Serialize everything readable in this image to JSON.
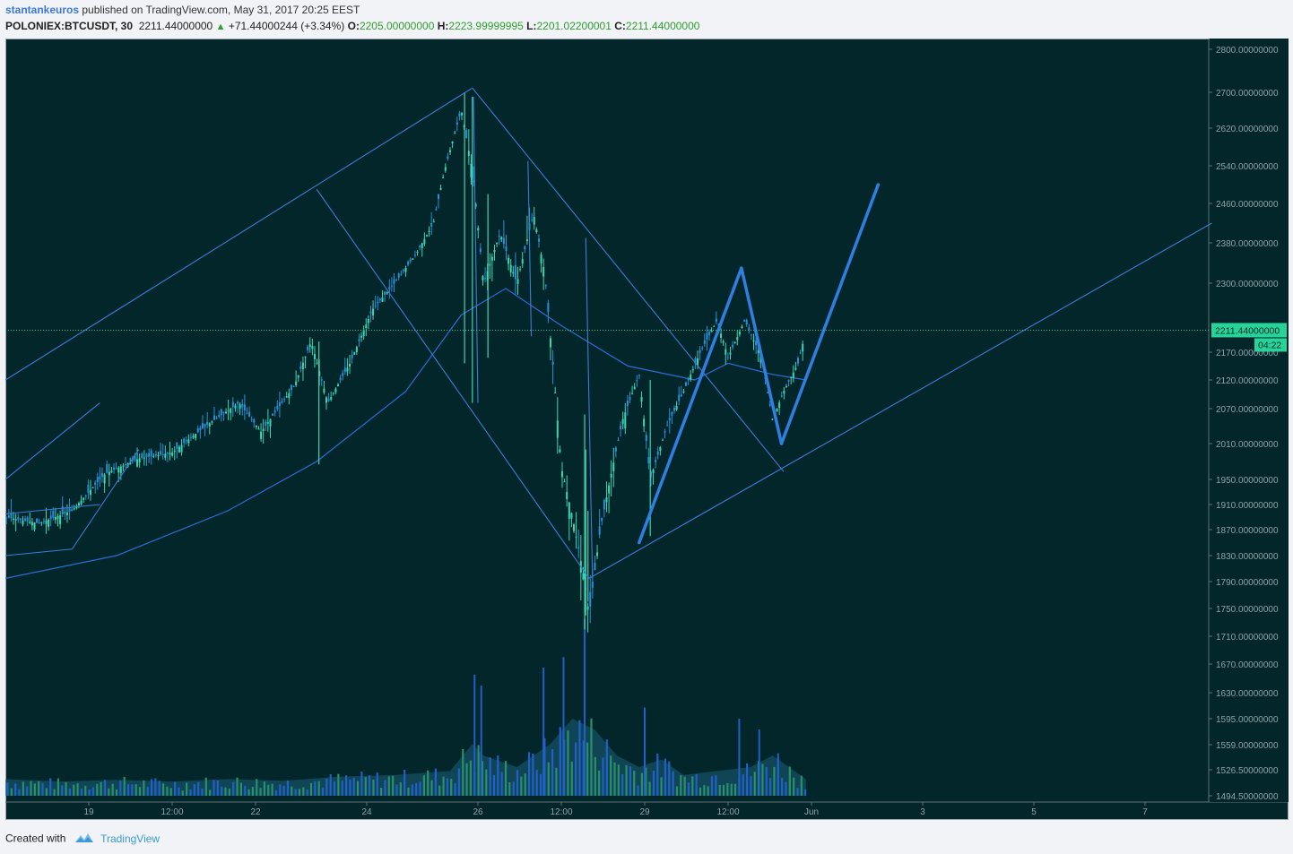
{
  "header": {
    "author": "stantankeuros",
    "published_text": "published on TradingView.com, May 31, 2017 20:25 EEST",
    "symbol": "POLONIEX:BTCUSDT, 30",
    "last": "2211.44000000",
    "change": "+71.44000244 (+3.34%)",
    "o_label": "O:",
    "o_value": "2205.00000000",
    "h_label": "H:",
    "h_value": "2223.99999995",
    "l_label": "L:",
    "l_value": "2201.02200001",
    "c_label": "C:",
    "c_value": "2211.44000000"
  },
  "footer": {
    "created_with": "Created with",
    "brand": "TradingView"
  },
  "chart_data": {
    "type": "candlestick",
    "symbol": "POLONIEX:BTCUSDT",
    "interval": "30",
    "last_price": 2211.44,
    "last_price_label": "2211.44000000",
    "countdown_label": "04:22",
    "price_axis_labels": [
      {
        "label": "2800.00000000",
        "v": 2800
      },
      {
        "label": "2700.00000000",
        "v": 2700
      },
      {
        "label": "2620.00000000",
        "v": 2620
      },
      {
        "label": "2540.00000000",
        "v": 2540
      },
      {
        "label": "2460.00000000",
        "v": 2460
      },
      {
        "label": "2380.00000000",
        "v": 2380
      },
      {
        "label": "2300.00000000",
        "v": 2300
      },
      {
        "label": "2170.00000000",
        "v": 2170
      },
      {
        "label": "2120.00000000",
        "v": 2120
      },
      {
        "label": "2070.00000000",
        "v": 2070
      },
      {
        "label": "2010.00000000",
        "v": 2010
      },
      {
        "label": "1950.00000000",
        "v": 1950
      },
      {
        "label": "1910.00000000",
        "v": 1910
      },
      {
        "label": "1870.00000000",
        "v": 1870
      },
      {
        "label": "1830.00000000",
        "v": 1830
      },
      {
        "label": "1790.00000000",
        "v": 1790
      },
      {
        "label": "1750.00000000",
        "v": 1750
      },
      {
        "label": "1710.00000000",
        "v": 1710
      },
      {
        "label": "1670.00000000",
        "v": 1670
      },
      {
        "label": "1630.00000000",
        "v": 1630
      },
      {
        "label": "1595.00000000",
        "v": 1595
      },
      {
        "label": "1559.00000000",
        "v": 1559
      },
      {
        "label": "1526.50000000",
        "v": 1526.5
      },
      {
        "label": "1494.50000000",
        "v": 1494.5
      }
    ],
    "time_axis_labels": [
      {
        "label": "19",
        "t": 0.75
      },
      {
        "label": "12:00",
        "t": 1.5
      },
      {
        "label": "22",
        "t": 2.25
      },
      {
        "label": "24",
        "t": 3.25
      },
      {
        "label": "26",
        "t": 4.25
      },
      {
        "label": "12:00",
        "t": 5
      },
      {
        "label": "29",
        "t": 5.75
      },
      {
        "label": "12:00",
        "t": 6.5
      },
      {
        "label": "Jun",
        "t": 7.25
      },
      {
        "label": "3",
        "t": 8.25
      },
      {
        "label": "5",
        "t": 9.25
      },
      {
        "label": "7",
        "t": 10.25
      }
    ],
    "price_path": [
      [
        0,
        1890
      ],
      [
        0.3,
        1880
      ],
      [
        0.6,
        1900
      ],
      [
        0.9,
        1960
      ],
      [
        1.2,
        1985
      ],
      [
        1.5,
        1995
      ],
      [
        1.8,
        2040
      ],
      [
        2.1,
        2080
      ],
      [
        2.3,
        2030
      ],
      [
        2.6,
        2110
      ],
      [
        2.75,
        2190
      ],
      [
        2.9,
        2080
      ],
      [
        3.1,
        2150
      ],
      [
        3.3,
        2250
      ],
      [
        3.5,
        2300
      ],
      [
        3.7,
        2360
      ],
      [
        3.85,
        2420
      ],
      [
        3.95,
        2530
      ],
      [
        4.1,
        2660
      ],
      [
        4.2,
        2530
      ],
      [
        4.3,
        2300
      ],
      [
        4.45,
        2400
      ],
      [
        4.6,
        2300
      ],
      [
        4.75,
        2440
      ],
      [
        4.85,
        2320
      ],
      [
        5.0,
        1970
      ],
      [
        5.1,
        1890
      ],
      [
        5.2,
        1800
      ],
      [
        5.25,
        1740
      ],
      [
        5.35,
        1870
      ],
      [
        5.55,
        2050
      ],
      [
        5.7,
        2130
      ],
      [
        5.8,
        1950
      ],
      [
        5.95,
        2040
      ],
      [
        6.1,
        2100
      ],
      [
        6.25,
        2170
      ],
      [
        6.4,
        2230
      ],
      [
        6.5,
        2160
      ],
      [
        6.65,
        2230
      ],
      [
        6.8,
        2160
      ],
      [
        6.9,
        2050
      ],
      [
        7.0,
        2100
      ],
      [
        7.13,
        2150
      ],
      [
        7.2,
        2211
      ]
    ],
    "moving_average": [
      [
        0,
        1795
      ],
      [
        1,
        1830
      ],
      [
        2,
        1900
      ],
      [
        2.8,
        1980
      ],
      [
        3.6,
        2100
      ],
      [
        4.1,
        2240
      ],
      [
        4.5,
        2290
      ],
      [
        5.0,
        2220
      ],
      [
        5.6,
        2145
      ],
      [
        6.2,
        2120
      ],
      [
        6.5,
        2150
      ],
      [
        6.9,
        2130
      ],
      [
        7.2,
        2120
      ]
    ],
    "trendlines_thin": [
      [
        [
          0,
          2120
        ],
        [
          4.2,
          2710
        ]
      ],
      [
        [
          4.2,
          2710
        ],
        [
          7.0,
          1963
        ]
      ],
      [
        [
          2.8,
          2490
        ],
        [
          5.25,
          1795
        ]
      ],
      [
        [
          5.25,
          1795
        ],
        [
          10.85,
          2420
        ]
      ],
      [
        [
          0,
          1950
        ],
        [
          0.85,
          2080
        ]
      ],
      [
        [
          0,
          1830
        ],
        [
          0.6,
          1840
        ]
      ],
      [
        [
          0.6,
          1840
        ],
        [
          1.2,
          2000
        ]
      ],
      [
        [
          0,
          1895
        ],
        [
          0.85,
          1910
        ]
      ]
    ],
    "vertical_lines": [
      [
        [
          4.21,
          2690
        ],
        [
          4.25,
          2080
        ]
      ],
      [
        [
          4.7,
          2550
        ],
        [
          4.73,
          2200
        ]
      ],
      [
        [
          5.22,
          2390
        ],
        [
          5.28,
          1795
        ]
      ]
    ],
    "trendlines_bold": [
      [
        [
          5.7,
          1850
        ],
        [
          6.62,
          2330
        ]
      ],
      [
        [
          6.62,
          2330
        ],
        [
          6.98,
          2010
        ]
      ],
      [
        [
          6.98,
          2010
        ],
        [
          7.85,
          2500
        ]
      ]
    ],
    "volume_path": [
      [
        0,
        1515
      ],
      [
        0.5,
        1512
      ],
      [
        1,
        1514
      ],
      [
        1.5,
        1512
      ],
      [
        2,
        1515
      ],
      [
        2.5,
        1513
      ],
      [
        3,
        1518
      ],
      [
        3.5,
        1520
      ],
      [
        4,
        1525
      ],
      [
        4.2,
        1560
      ],
      [
        4.3,
        1545
      ],
      [
        4.6,
        1530
      ],
      [
        4.9,
        1560
      ],
      [
        5.1,
        1595
      ],
      [
        5.3,
        1580
      ],
      [
        5.5,
        1545
      ],
      [
        5.7,
        1530
      ],
      [
        5.9,
        1540
      ],
      [
        6.1,
        1520
      ],
      [
        6.4,
        1525
      ],
      [
        6.7,
        1530
      ],
      [
        6.9,
        1545
      ],
      [
        7.2,
        1515
      ]
    ],
    "volume_spikes": [
      [
        4.22,
        1655
      ],
      [
        4.28,
        1640
      ],
      [
        4.84,
        1665
      ],
      [
        5.02,
        1680
      ],
      [
        5.21,
        1735
      ],
      [
        5.75,
        1610
      ],
      [
        6.6,
        1595
      ],
      [
        6.78,
        1580
      ],
      [
        6.95,
        1548
      ]
    ],
    "dotted_price_line": 2211.44,
    "colors": {
      "background": "#02262a",
      "candles": "#3dd6b2",
      "candles_alt": "#2a8fd6",
      "trendlines": "#3a7ed6",
      "moving_average": "#2a6fd6",
      "volume": "#2060c8",
      "last_price_label": "#28d39a"
    }
  }
}
